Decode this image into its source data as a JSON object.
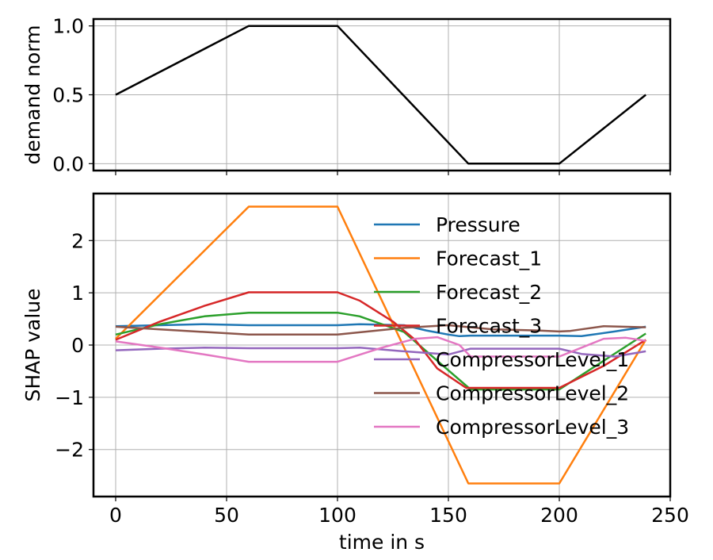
{
  "chart_data": [
    {
      "type": "line",
      "title": "",
      "xlabel": "",
      "ylabel": "demand norm",
      "xlim": [
        -10,
        250
      ],
      "ylim": [
        -0.05,
        1.05
      ],
      "xticks": [
        0,
        50,
        100,
        150,
        200,
        250
      ],
      "xticklabels": [
        "",
        "",
        "",
        "",
        "",
        ""
      ],
      "yticks": [
        0.0,
        0.5,
        1.0
      ],
      "yticklabels": [
        "0.0",
        "0.5",
        "1.0"
      ],
      "grid": true,
      "series": [
        {
          "name": "demand",
          "color": "#000000",
          "x": [
            0,
            60,
            100,
            159,
            200,
            239
          ],
          "y": [
            0.5,
            1.0,
            1.0,
            0.0,
            0.0,
            0.5
          ]
        }
      ]
    },
    {
      "type": "line",
      "title": "",
      "xlabel": "time in s",
      "ylabel": "SHAP value",
      "xlim": [
        -10,
        250
      ],
      "ylim": [
        -2.9,
        2.9
      ],
      "xticks": [
        0,
        50,
        100,
        150,
        200,
        250
      ],
      "xticklabels": [
        "0",
        "50",
        "100",
        "150",
        "200",
        "250"
      ],
      "yticks": [
        -2,
        -1,
        0,
        1,
        2
      ],
      "yticklabels": [
        "−2",
        "−1",
        "0",
        "1",
        "2"
      ],
      "grid": true,
      "legend_position": "upper-right",
      "series": [
        {
          "name": "Pressure",
          "color": "#1f77b4",
          "x": [
            0,
            20,
            40,
            60,
            80,
            100,
            110,
            130,
            140,
            150,
            155,
            160,
            180,
            200,
            210,
            225,
            239
          ],
          "y": [
            0.36,
            0.38,
            0.4,
            0.38,
            0.38,
            0.38,
            0.4,
            0.38,
            0.28,
            0.2,
            0.17,
            0.18,
            0.18,
            0.18,
            0.17,
            0.26,
            0.35
          ]
        },
        {
          "name": "Forecast_1",
          "color": "#ff7f0e",
          "x": [
            0,
            60,
            100,
            159,
            200,
            239
          ],
          "y": [
            0.12,
            2.65,
            2.65,
            -2.65,
            -2.65,
            0.1
          ]
        },
        {
          "name": "Forecast_2",
          "color": "#2ca02c",
          "x": [
            0,
            20,
            40,
            60,
            80,
            100,
            110,
            130,
            145,
            160,
            180,
            200,
            220,
            239
          ],
          "y": [
            0.2,
            0.4,
            0.55,
            0.62,
            0.62,
            0.62,
            0.55,
            0.25,
            -0.3,
            -0.85,
            -0.85,
            -0.85,
            -0.3,
            0.22
          ]
        },
        {
          "name": "Forecast_3",
          "color": "#d62728",
          "x": [
            0,
            20,
            40,
            60,
            80,
            100,
            110,
            125,
            135,
            145,
            158,
            180,
            200,
            220,
            239
          ],
          "y": [
            0.1,
            0.45,
            0.75,
            1.01,
            1.01,
            1.01,
            0.85,
            0.45,
            0.1,
            -0.45,
            -0.82,
            -0.82,
            -0.82,
            -0.4,
            0.1
          ]
        },
        {
          "name": "CompressorLevel_1",
          "color": "#9467bd",
          "x": [
            0,
            20,
            40,
            60,
            80,
            100,
            110,
            130,
            150,
            160,
            180,
            200,
            210,
            225,
            239
          ],
          "y": [
            -0.1,
            -0.07,
            -0.05,
            -0.06,
            -0.06,
            -0.06,
            -0.05,
            -0.12,
            -0.18,
            -0.07,
            -0.07,
            -0.07,
            -0.17,
            -0.22,
            -0.12
          ]
        },
        {
          "name": "CompressorLevel_2",
          "color": "#8c564b",
          "x": [
            0,
            20,
            40,
            60,
            80,
            100,
            130,
            150,
            170,
            190,
            200,
            205,
            210,
            220,
            239
          ],
          "y": [
            0.35,
            0.3,
            0.25,
            0.2,
            0.2,
            0.2,
            0.33,
            0.38,
            0.3,
            0.28,
            0.26,
            0.27,
            0.3,
            0.36,
            0.34
          ]
        },
        {
          "name": "CompressorLevel_3",
          "color": "#e377c2",
          "x": [
            0,
            20,
            40,
            60,
            80,
            100,
            120,
            135,
            145,
            155,
            160,
            180,
            200,
            210,
            220,
            230,
            239
          ],
          "y": [
            0.07,
            -0.05,
            -0.18,
            -0.32,
            -0.32,
            -0.32,
            -0.05,
            0.12,
            0.15,
            0.0,
            -0.22,
            -0.22,
            -0.22,
            -0.05,
            0.12,
            0.14,
            0.08
          ]
        }
      ]
    }
  ]
}
